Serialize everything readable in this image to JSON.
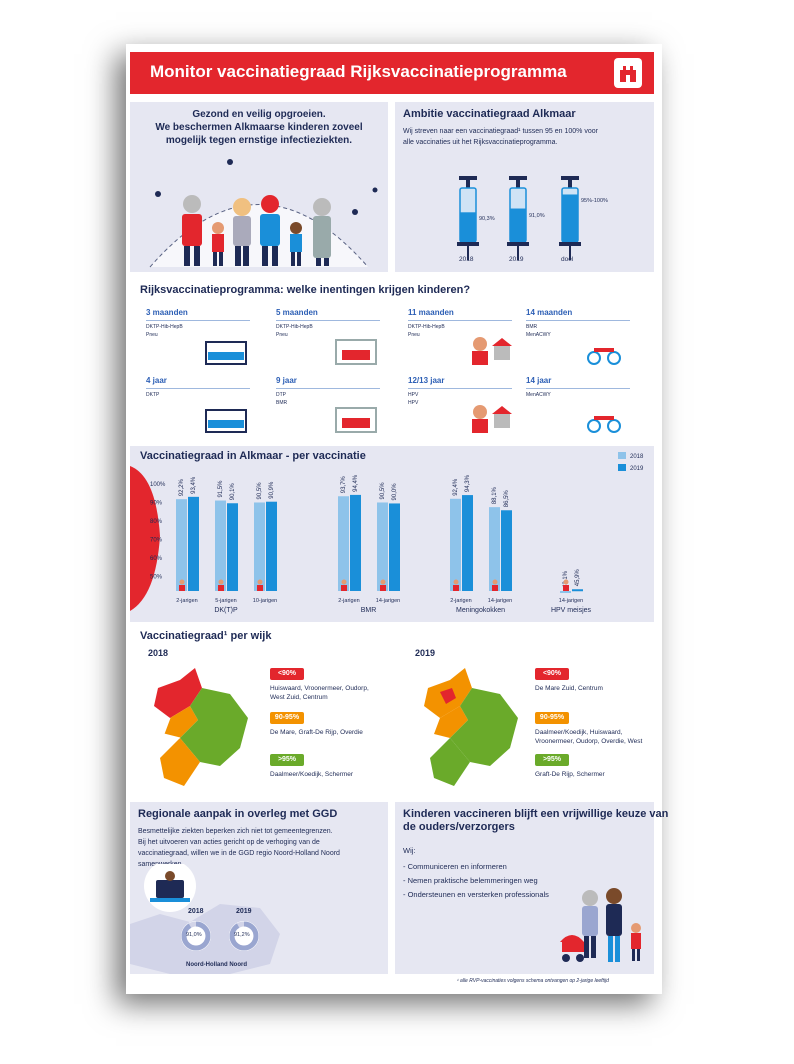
{
  "header": {
    "title": "Monitor vaccinatiegraad Rijksvaccinatieprogramma"
  },
  "intro": {
    "line1": "Gezond en veilig opgroeien.",
    "line2": "We beschermen Alkmaarse kinderen zoveel",
    "line3": "mogelijk tegen ernstige infectieziekten."
  },
  "ambitie": {
    "title": "Ambitie vaccinatiegraad Alkmaar",
    "text1": "Wij streven naar een vaccinatiegraad¹ tussen 95 en 100% voor",
    "text2": "alle vaccinaties uit het Rijksvaccinatieprogramma.",
    "syringes": [
      {
        "label": "2018",
        "value_label": "90,3%",
        "fill": 0.55
      },
      {
        "label": "2019",
        "value_label": "91,0%",
        "fill": 0.62
      },
      {
        "label": "doel",
        "value_label": "95%-100%",
        "fill": 0.88
      }
    ]
  },
  "rvp": {
    "title": "Rijksvaccinatieprogramma: welke inentingen krijgen kinderen?",
    "ages": [
      {
        "label": "3 maanden",
        "vaccines": [
          "DKTP-Hib-HepB",
          "Pneu"
        ]
      },
      {
        "label": "5 maanden",
        "vaccines": [
          "DKTP-Hib-HepB",
          "Pneu"
        ]
      },
      {
        "label": "11 maanden",
        "vaccines": [
          "DKTP-Hib-HepB",
          "Pneu"
        ]
      },
      {
        "label": "14 maanden",
        "vaccines": [
          "BMR",
          "MenACWY"
        ]
      },
      {
        "label": "4 jaar",
        "vaccines": [
          "DKTP"
        ]
      },
      {
        "label": "9 jaar",
        "vaccines": [
          "DTP",
          "BMR"
        ]
      },
      {
        "label": "12/13 jaar",
        "vaccines": [
          "HPV",
          "HPV"
        ]
      },
      {
        "label": "14 jaar",
        "vaccines": [
          "MenACWY"
        ]
      }
    ]
  },
  "chart_data": {
    "type": "bar",
    "title": "Vaccinatiegraad in Alkmaar - per vaccinatie",
    "legend": [
      "2018",
      "2019"
    ],
    "legend_position": "top-right",
    "y_ticks": [
      "100%",
      "90%",
      "80%",
      "70%",
      "60%",
      "50%"
    ],
    "ylim": [
      45,
      100
    ],
    "groups": [
      {
        "name": "DK(T)P",
        "categories": [
          "2-jarigen",
          "5-jarigen",
          "10-jarigen"
        ],
        "v2018": [
          92.2,
          91.5,
          90.5
        ],
        "v2019": [
          93.4,
          90.1,
          90.9
        ],
        "l2018": [
          "92,2%",
          "91,5%",
          "90,5%"
        ],
        "l2019": [
          "93,4%",
          "90,1%",
          "90,9%"
        ]
      },
      {
        "name": "BMR",
        "categories": [
          "2-jarigen",
          "14-jarigen"
        ],
        "v2018": [
          93.7,
          90.5
        ],
        "v2019": [
          94.4,
          90.0
        ],
        "l2018": [
          "93,7%",
          "90,5%"
        ],
        "l2019": [
          "94,4%",
          "90,0%"
        ]
      },
      {
        "name": "Meningokokken",
        "categories": [
          "2-jarigen",
          "14-jarigen"
        ],
        "v2018": [
          92.4,
          88.1
        ],
        "v2019": [
          94.3,
          86.5
        ],
        "l2018": [
          "92,4%",
          "88,1%"
        ],
        "l2019": [
          "94,3%",
          "86,5%"
        ]
      },
      {
        "name": "HPV meisjes",
        "categories": [
          "14-jarigen"
        ],
        "v2018": [
          42.1
        ],
        "v2019": [
          45.9
        ],
        "l2018": [
          "42,1%"
        ],
        "l2019": [
          "45,9%"
        ]
      }
    ]
  },
  "wijk": {
    "title": "Vaccinatiegraad¹ per wijk",
    "years": [
      {
        "year": "2018",
        "bands": [
          {
            "tag": "<90%",
            "color": "#e3262d",
            "text": "Huiswaard, Vroonermeer, Oudorp, West Zuid, Centrum"
          },
          {
            "tag": "90-95%",
            "color": "#f39200",
            "text": "De Mare, Graft-De Rijp, Overdie"
          },
          {
            "tag": ">95%",
            "color": "#6aaa2a",
            "text": "Daalmeer/Koedijk, Schermer"
          }
        ]
      },
      {
        "year": "2019",
        "bands": [
          {
            "tag": "<90%",
            "color": "#e3262d",
            "text": "De Mare Zuid, Centrum"
          },
          {
            "tag": "90-95%",
            "color": "#f39200",
            "text": "Daalmeer/Koedijk, Huiswaard, Vroonermeer, Oudorp, Overdie, West"
          },
          {
            "tag": ">95%",
            "color": "#6aaa2a",
            "text": "Graft-De Rijp, Schermer"
          }
        ]
      }
    ]
  },
  "regio": {
    "title": "Regionale aanpak in overleg met GGD",
    "text1": "Besmettelijke ziekten beperken zich niet tot gemeentegrenzen.",
    "text2": "Bij het uitvoeren van acties gericht op de verhoging van de",
    "text3": "vaccinatiegraad, willen we in de GGD regio Noord-Holland Noord",
    "text4": "samenwerken.",
    "donuts": [
      {
        "year": "2018",
        "label": "91,0%",
        "value": 0.91
      },
      {
        "year": "2019",
        "label": "91,2%",
        "value": 0.912
      }
    ],
    "region_label": "Noord-Holland Noord"
  },
  "vrijwillig": {
    "title1": "Kinderen vaccineren blijft een vrijwillige keuze van",
    "title2": "de ouders/verzorgers",
    "wij": "Wij:",
    "items": [
      "- Communiceren en informeren",
      "- Nemen praktische belemmeringen weg",
      "- Ondersteunen en versterken professionals"
    ]
  },
  "footnote": "¹ alle RVP-vaccinaties volgens schema ontvangen op 2-jarige leeftijd",
  "colors": {
    "red": "#e3262d",
    "navy": "#1e2a55",
    "blue2018": "#8ec3ea",
    "blue2019": "#1a8fd9",
    "panel": "#e6e7f2"
  }
}
